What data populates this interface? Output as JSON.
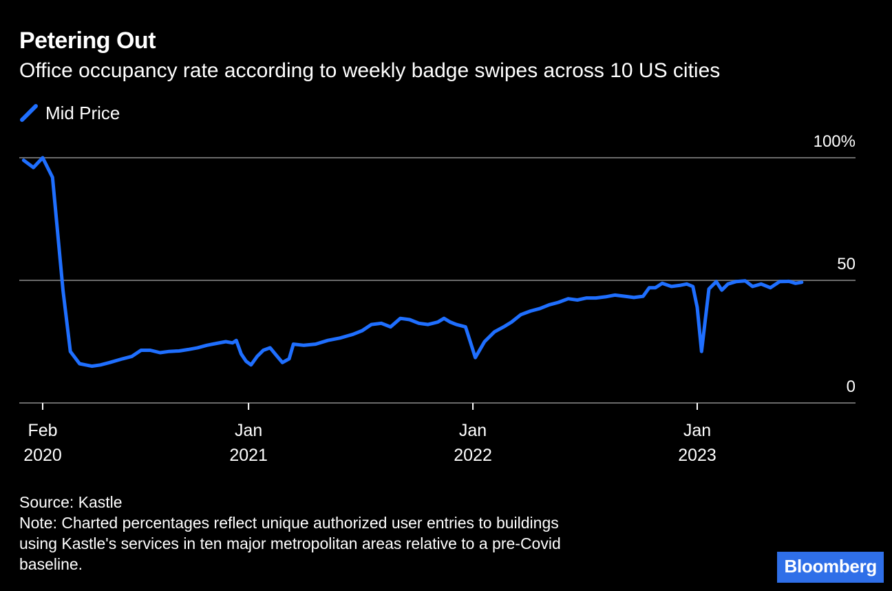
{
  "header": {
    "title": "Petering Out",
    "subtitle": "Office occupancy rate according to weekly badge swipes across 10 US cities"
  },
  "legend": {
    "label": "Mid Price",
    "color": "#1f6fff"
  },
  "footer": {
    "source": "Source: Kastle",
    "note_lines": [
      "Note: Charted percentages reflect unique authorized user entries to buildings",
      "using Kastle's services in ten major metropolitan areas relative to a pre-Covid",
      "baseline."
    ]
  },
  "brand": {
    "label": "Bloomberg",
    "color": "#2f6fe8"
  },
  "chart_data": {
    "type": "line",
    "title": "Petering Out",
    "subtitle": "Office occupancy rate according to weekly badge swipes across 10 US cities",
    "xlabel": "",
    "ylabel": "",
    "ylim": [
      0,
      100
    ],
    "yticks": [
      {
        "value": 100,
        "label": "100%"
      },
      {
        "value": 50,
        "label": "50"
      },
      {
        "value": 0,
        "label": "0"
      }
    ],
    "xticks": [
      {
        "date": "2020-02-01",
        "label": [
          "Feb",
          "2020"
        ]
      },
      {
        "date": "2021-01-01",
        "label": [
          "Jan",
          "2021"
        ]
      },
      {
        "date": "2022-01-01",
        "label": [
          "Jan",
          "2022"
        ]
      },
      {
        "date": "2023-01-01",
        "label": [
          "Jan",
          "2023"
        ]
      }
    ],
    "xlim": [
      "2020-01-01",
      "2023-08-01"
    ],
    "grid": true,
    "legend_position": "top-left",
    "series": [
      {
        "name": "Mid Price",
        "color": "#1f6fff",
        "points": [
          [
            "2020-01-01",
            99
          ],
          [
            "2020-01-17",
            96
          ],
          [
            "2020-02-01",
            100
          ],
          [
            "2020-02-17",
            92
          ],
          [
            "2020-03-05",
            46
          ],
          [
            "2020-03-17",
            21
          ],
          [
            "2020-04-01",
            16
          ],
          [
            "2020-04-21",
            15
          ],
          [
            "2020-05-05",
            15.5
          ],
          [
            "2020-05-20",
            16.5
          ],
          [
            "2020-06-10",
            18
          ],
          [
            "2020-06-25",
            19
          ],
          [
            "2020-07-10",
            21.5
          ],
          [
            "2020-07-25",
            21.5
          ],
          [
            "2020-08-10",
            20.5
          ],
          [
            "2020-08-25",
            21
          ],
          [
            "2020-09-10",
            21.2
          ],
          [
            "2020-09-25",
            21.8
          ],
          [
            "2020-10-10",
            22.5
          ],
          [
            "2020-10-25",
            23.5
          ],
          [
            "2020-11-10",
            24.3
          ],
          [
            "2020-11-25",
            25
          ],
          [
            "2020-12-06",
            24.5
          ],
          [
            "2020-12-12",
            25.5
          ],
          [
            "2020-12-20",
            20
          ],
          [
            "2020-12-28",
            17
          ],
          [
            "2021-01-05",
            15.5
          ],
          [
            "2021-01-15",
            19
          ],
          [
            "2021-01-25",
            21.5
          ],
          [
            "2021-02-05",
            22.5
          ],
          [
            "2021-02-15",
            19.5
          ],
          [
            "2021-02-25",
            16.5
          ],
          [
            "2021-03-08",
            18
          ],
          [
            "2021-03-15",
            24
          ],
          [
            "2021-04-01",
            23.5
          ],
          [
            "2021-04-20",
            24
          ],
          [
            "2021-05-10",
            25.5
          ],
          [
            "2021-05-30",
            26.5
          ],
          [
            "2021-06-20",
            28
          ],
          [
            "2021-07-05",
            29.5
          ],
          [
            "2021-07-20",
            32
          ],
          [
            "2021-08-05",
            32.5
          ],
          [
            "2021-08-20",
            31
          ],
          [
            "2021-09-05",
            34.5
          ],
          [
            "2021-09-20",
            34
          ],
          [
            "2021-10-05",
            32.5
          ],
          [
            "2021-10-20",
            32
          ],
          [
            "2021-11-05",
            33
          ],
          [
            "2021-11-15",
            34.5
          ],
          [
            "2021-11-25",
            33
          ],
          [
            "2021-12-05",
            32
          ],
          [
            "2021-12-20",
            31
          ],
          [
            "2022-01-05",
            18.5
          ],
          [
            "2022-01-20",
            25
          ],
          [
            "2022-02-05",
            29
          ],
          [
            "2022-02-20",
            31
          ],
          [
            "2022-03-05",
            33
          ],
          [
            "2022-03-20",
            36
          ],
          [
            "2022-04-05",
            37.5
          ],
          [
            "2022-04-20",
            38.5
          ],
          [
            "2022-05-05",
            40
          ],
          [
            "2022-05-20",
            41
          ],
          [
            "2022-06-05",
            42.5
          ],
          [
            "2022-06-20",
            42
          ],
          [
            "2022-07-05",
            42.8
          ],
          [
            "2022-07-20",
            42.8
          ],
          [
            "2022-08-05",
            43.3
          ],
          [
            "2022-08-20",
            44
          ],
          [
            "2022-09-05",
            43.5
          ],
          [
            "2022-09-20",
            43
          ],
          [
            "2022-10-05",
            43.5
          ],
          [
            "2022-10-15",
            47
          ],
          [
            "2022-10-25",
            47
          ],
          [
            "2022-11-05",
            48.8
          ],
          [
            "2022-11-20",
            47.5
          ],
          [
            "2022-12-05",
            48
          ],
          [
            "2022-12-15",
            48.5
          ],
          [
            "2022-12-25",
            47.5
          ],
          [
            "2023-01-01",
            39
          ],
          [
            "2023-01-08",
            21
          ],
          [
            "2023-01-20",
            46.5
          ],
          [
            "2023-02-01",
            49.5
          ],
          [
            "2023-02-10",
            46
          ],
          [
            "2023-02-20",
            48.5
          ],
          [
            "2023-03-05",
            49.5
          ],
          [
            "2023-03-20",
            49.8
          ],
          [
            "2023-04-01",
            47.5
          ],
          [
            "2023-04-15",
            48.5
          ],
          [
            "2023-04-30",
            47
          ],
          [
            "2023-05-15",
            49.5
          ],
          [
            "2023-05-30",
            49.6
          ],
          [
            "2023-06-10",
            48.8
          ],
          [
            "2023-06-20",
            49.2
          ]
        ]
      }
    ]
  }
}
